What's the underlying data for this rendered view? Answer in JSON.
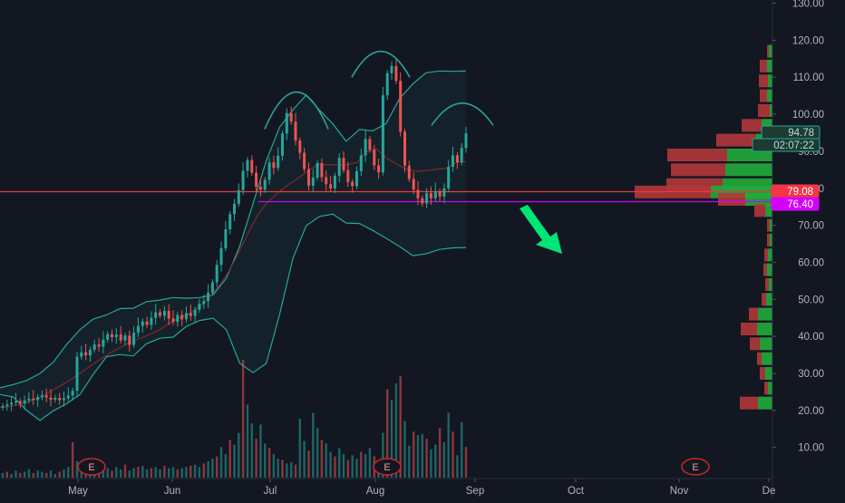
{
  "chart_data": {
    "type": "candlestick",
    "x_axis": {
      "labels": [
        {
          "label": "May",
          "day": 0
        },
        {
          "label": "Jun",
          "day": 31
        },
        {
          "label": "Jul",
          "day": 61
        },
        {
          "label": "Aug",
          "day": 92
        },
        {
          "label": "Sep",
          "day": 123
        },
        {
          "label": "Oct",
          "day": 153
        },
        {
          "label": "Nov",
          "day": 184
        },
        {
          "label": "De",
          "day": 214
        }
      ]
    },
    "y_axis": {
      "ticks": [
        "130.00",
        "120.00",
        "110.00",
        "100.00",
        "90.00",
        "80.00",
        "70.00",
        "60.00",
        "50.00",
        "40.00",
        "30.00",
        "20.00",
        "10.00"
      ],
      "tick_values": [
        130,
        120,
        110,
        100,
        90,
        80,
        70,
        60,
        50,
        40,
        30,
        20,
        10
      ],
      "range": [
        0,
        131
      ]
    },
    "price_labels": [
      {
        "text": "94.78",
        "value": 94.78,
        "style": "outline-green"
      },
      {
        "text": "02:07:22",
        "value": 91.0,
        "style": "outline-green"
      },
      {
        "text": "79.08",
        "value": 79.08,
        "style": "solid-red"
      },
      {
        "text": "76.40",
        "value": 76.4,
        "style": "solid-magenta"
      }
    ],
    "horizontal_lines": [
      {
        "value": 79.08,
        "color": "#f23645",
        "full_width": true
      },
      {
        "value": 76.4,
        "color": "#d500f9",
        "from_day": 60
      }
    ],
    "candles_close": [
      21.2,
      21.6,
      22.1,
      22.5,
      21.9,
      22.7,
      23.2,
      22.8,
      23.6,
      24.1,
      23.5,
      22.9,
      23.4,
      22.8,
      23.3,
      24.0,
      25.3,
      34.5,
      35.7,
      34.9,
      36.4,
      37.8,
      37.2,
      39.1,
      40.6,
      39.8,
      40.5,
      38.9,
      40.2,
      37.7,
      41.0,
      42.8,
      44.0,
      43.1,
      45.0,
      46.5,
      45.6,
      46.9,
      44.8,
      43.9,
      45.8,
      44.6,
      46.3,
      45.5,
      47.2,
      48.8,
      49.5,
      51.8,
      54.6,
      59.3,
      63.8,
      68.9,
      73.0,
      75.8,
      79.5,
      84.7,
      87.6,
      84.2,
      80.4,
      79.6,
      82.3,
      87.0,
      85.5,
      88.8,
      94.8,
      100.3,
      98.0,
      92.9,
      89.6,
      85.2,
      80.7,
      82.9,
      86.8,
      83.0,
      81.1,
      80.0,
      83.4,
      88.2,
      84.9,
      81.7,
      80.6,
      84.6,
      88.9,
      93.3,
      90.4,
      86.2,
      84.3,
      105.1,
      111.1,
      113.0,
      109.0,
      95.3,
      86.1,
      82.5,
      79.6,
      77.3,
      75.9,
      78.7,
      77.3,
      79.2,
      77.8,
      80.0,
      85.8,
      88.9,
      87.0,
      90.9,
      94.8
    ],
    "sma_values": [
      20.8,
      21.1,
      21.6,
      22.5,
      23.5,
      25.0,
      26.5,
      28.1,
      29.9,
      31.8,
      33.6,
      35.3,
      36.8,
      38.2,
      39.3,
      40.4,
      41.6,
      43.4,
      44.9,
      46.0,
      47.7,
      50.2,
      53.3,
      57.2,
      62.2,
      67.8,
      72.8,
      76.3,
      78.7,
      80.8,
      82.6,
      84.5,
      86.4,
      86.4,
      86.3,
      86.3,
      87.0,
      89.9,
      90.6,
      88.1,
      86.6,
      85.1,
      84.6,
      84.8,
      85.1,
      85.4,
      87.0,
      87.2
    ],
    "bollinger_upper": [
      26.1,
      27.0,
      28.1,
      30.0,
      33.0,
      37.8,
      41.8,
      44.7,
      45.8,
      47.5,
      47.6,
      49.4,
      49.8,
      50.5,
      50.3,
      50.5,
      51.2,
      55.7,
      64.3,
      75.8,
      87.4,
      96.5,
      101.2,
      105.2,
      101.1,
      97.4,
      92.7,
      95.9,
      95.5,
      97.5,
      104.2,
      108.2,
      111.2,
      111.7,
      111.6,
      111.7
    ],
    "bollinger_lower": [
      24.3,
      23.6,
      20.0,
      17.3,
      19.9,
      21.8,
      24.3,
      29.7,
      34.5,
      35.1,
      34.7,
      38.0,
      39.5,
      39.8,
      42.7,
      44.3,
      44.9,
      41.8,
      32.8,
      30.2,
      32.7,
      45.9,
      61.1,
      69.9,
      72.4,
      73.0,
      70.6,
      70.5,
      68.6,
      66.5,
      64.3,
      61.8,
      62.3,
      63.5,
      63.9,
      64.0
    ],
    "volume_bars": [
      4,
      5,
      3,
      6,
      4,
      5,
      7,
      4,
      6,
      5,
      4,
      6,
      3,
      5,
      7,
      9,
      30,
      14,
      8,
      7,
      9,
      8,
      10,
      7,
      8,
      6,
      9,
      7,
      11,
      6,
      8,
      9,
      10,
      7,
      8,
      9,
      7,
      10,
      8,
      9,
      7,
      8,
      9,
      10,
      11,
      9,
      12,
      14,
      16,
      18,
      26,
      20,
      32,
      28,
      38,
      100,
      62,
      46,
      33,
      45,
      29,
      25,
      20,
      16,
      15,
      12,
      13,
      11,
      50,
      31,
      23,
      55,
      42,
      32,
      29,
      22,
      18,
      25,
      20,
      15,
      19,
      16,
      22,
      20,
      25,
      18,
      15,
      38,
      75,
      66,
      80,
      86,
      48,
      27,
      39,
      36,
      37,
      33,
      24,
      28,
      42,
      30,
      55,
      39,
      19,
      47,
      26
    ],
    "volume_profile": [
      {
        "value": 117,
        "up": 4,
        "down": 2
      },
      {
        "value": 113,
        "up": 6,
        "down": 8
      },
      {
        "value": 109,
        "up": 5,
        "down": 10
      },
      {
        "value": 105,
        "up": 6,
        "down": 8
      },
      {
        "value": 101,
        "up": 3,
        "down": 13
      },
      {
        "value": 97,
        "up": 12,
        "down": 22
      },
      {
        "value": 93,
        "up": 18,
        "down": 44
      },
      {
        "value": 89,
        "up": 50,
        "down": 66
      },
      {
        "value": 85,
        "up": 52,
        "down": 60
      },
      {
        "value": 81,
        "up": 55,
        "down": 62
      },
      {
        "value": 79,
        "up": 68,
        "down": 84
      },
      {
        "value": 77,
        "up": 30,
        "down": 30
      },
      {
        "value": 74,
        "up": 8,
        "down": 12
      },
      {
        "value": 70,
        "up": 3,
        "down": 3
      },
      {
        "value": 66,
        "up": 3,
        "down": 3
      },
      {
        "value": 62,
        "up": 5,
        "down": 4
      },
      {
        "value": 58,
        "up": 6,
        "down": 4
      },
      {
        "value": 54,
        "up": 4,
        "down": 4
      },
      {
        "value": 50,
        "up": 7,
        "down": 5
      },
      {
        "value": 46,
        "up": 16,
        "down": 10
      },
      {
        "value": 42,
        "up": 17,
        "down": 18
      },
      {
        "value": 38,
        "up": 14,
        "down": 11
      },
      {
        "value": 34,
        "up": 12,
        "down": 5
      },
      {
        "value": 30,
        "up": 8,
        "down": 6
      },
      {
        "value": 26,
        "up": 5,
        "down": 4
      },
      {
        "value": 22,
        "up": 16,
        "down": 20
      }
    ],
    "earnings_markers": [
      {
        "label": "E",
        "day": 6
      },
      {
        "label": "E",
        "day": 98
      },
      {
        "label": "E",
        "day": 206
      }
    ],
    "annotation_arrow": {
      "direction": "down-right",
      "color": "#00e676"
    },
    "grid": false,
    "colors": {
      "background": "#131722",
      "up": "#26a69a",
      "down": "#ef5350",
      "sma": "#7b2a2a",
      "bollinger": "#26a69a",
      "profile_up": "#22ab3c",
      "profile_down": "#b2373a",
      "axis_text": "#b2b5be"
    }
  }
}
